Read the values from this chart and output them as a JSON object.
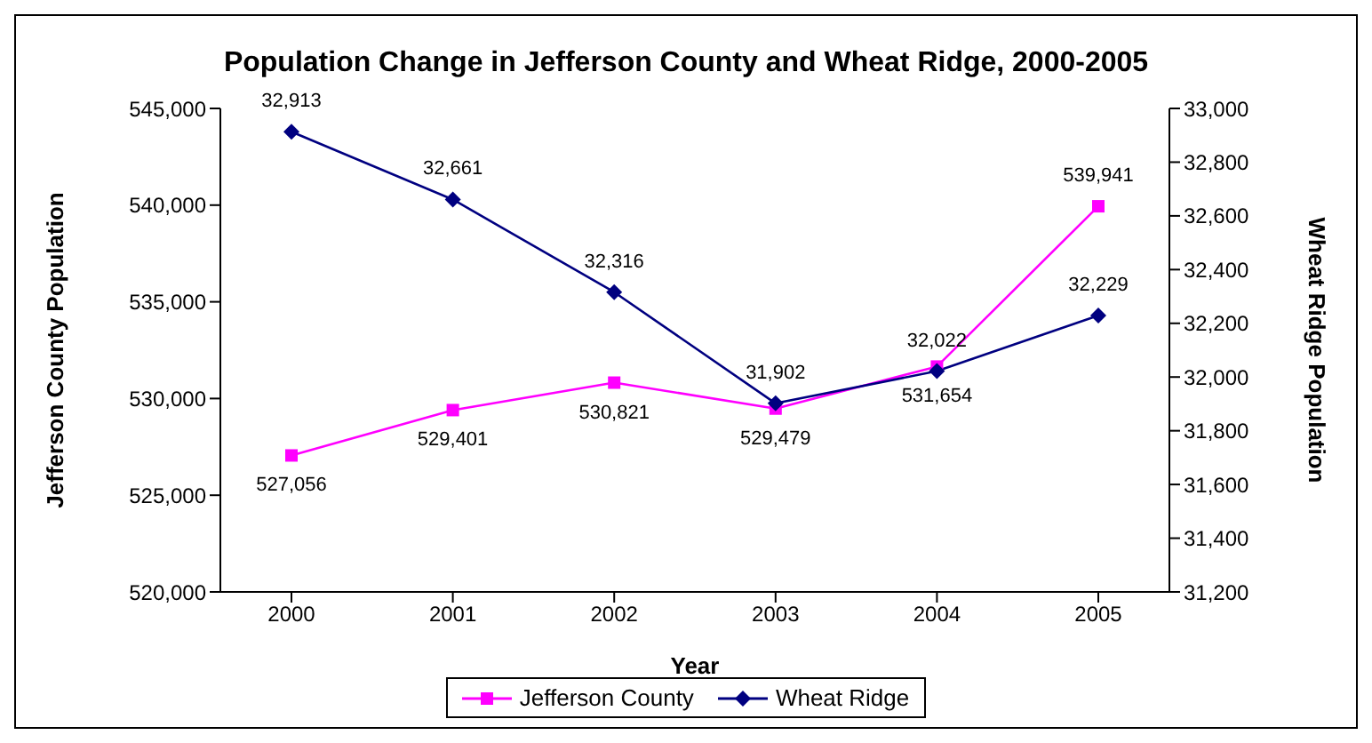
{
  "chart_data": {
    "type": "line",
    "title": "Population Change in Jefferson County and Wheat Ridge, 2000-2005",
    "xlabel": "Year",
    "ylabel": "Jefferson County Population",
    "y2label": "Wheat Ridge Population",
    "categories": [
      "2000",
      "2001",
      "2002",
      "2003",
      "2004",
      "2005"
    ],
    "series": [
      {
        "name": "Jefferson County",
        "color": "#ff00ff",
        "marker": "square",
        "values": [
          527056,
          529401,
          530821,
          529479,
          531654,
          539941
        ],
        "value_labels": [
          "527,056",
          "529,401",
          "530,821",
          "529,479",
          "531,654",
          "539,941"
        ]
      },
      {
        "name": "Wheat Ridge",
        "color": "#000080",
        "marker": "diamond",
        "axis": "y2",
        "values": [
          32913,
          32661,
          32316,
          31902,
          32022,
          32229
        ],
        "value_labels": [
          "32,913",
          "32,661",
          "32,316",
          "31,902",
          "32,022",
          "32,229"
        ]
      }
    ],
    "ylim": [
      520000,
      545000
    ],
    "yticks": [
      {
        "value": 520000,
        "label": "520,000"
      },
      {
        "value": 525000,
        "label": "525,000"
      },
      {
        "value": 530000,
        "label": "530,000"
      },
      {
        "value": 535000,
        "label": "535,000"
      },
      {
        "value": 540000,
        "label": "540,000"
      },
      {
        "value": 545000,
        "label": "545,000"
      }
    ],
    "y2lim": [
      31200,
      33000
    ],
    "y2ticks": [
      {
        "value": 31200,
        "label": "31,200"
      },
      {
        "value": 31400,
        "label": "31,400"
      },
      {
        "value": 31600,
        "label": "31,600"
      },
      {
        "value": 31800,
        "label": "31,800"
      },
      {
        "value": 32000,
        "label": "32,000"
      },
      {
        "value": 32200,
        "label": "32,200"
      },
      {
        "value": 32400,
        "label": "32,400"
      },
      {
        "value": 32600,
        "label": "32,600"
      },
      {
        "value": 32800,
        "label": "32,800"
      },
      {
        "value": 33000,
        "label": "33,000"
      }
    ],
    "legend": "bottom"
  }
}
